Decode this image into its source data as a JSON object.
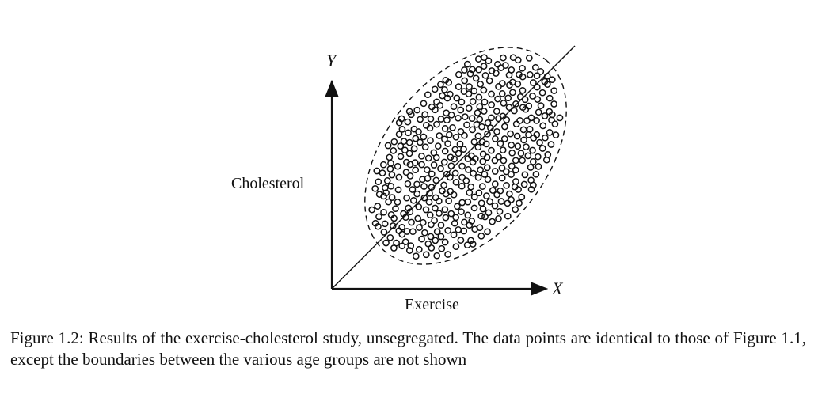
{
  "figure": {
    "y_axis_letter": "Y",
    "x_axis_letter": "X",
    "y_axis_label": "Cholesterol",
    "x_axis_label": "Exercise"
  },
  "caption": "Figure 1.2: Results of the exercise-cholesterol study, unsegregated. The data points are identical to those of Figure 1.1, except the boundaries between the various age groups are not shown"
}
